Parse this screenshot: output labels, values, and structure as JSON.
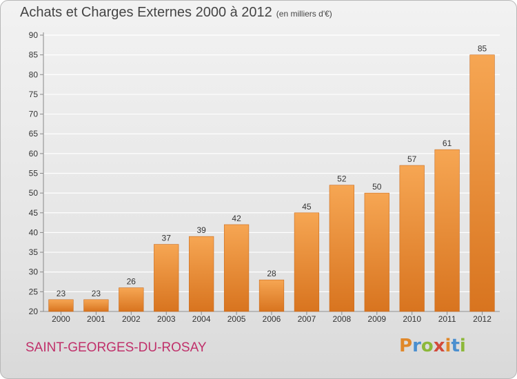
{
  "header": {
    "title": "Achats et Charges Externes 2000 à 2012",
    "subtitle": "(en milliers d'€)"
  },
  "footer": {
    "commune": "SAINT-GEORGES-DU-ROSAY",
    "brand": "Proxiti",
    "brand_colors": [
      "#e0882a",
      "#4a8fcf",
      "#8cb83a",
      "#d24a3a",
      "#e0882a",
      "#4a8fcf",
      "#8cb83a"
    ]
  },
  "colors": {
    "bar_top": "#f6a653",
    "bar_bottom": "#d8741f",
    "grid": "#ffffff",
    "axis_text": "#333333",
    "title_text": "#444444",
    "commune_text": "#c0306a"
  },
  "chart_data": {
    "type": "bar",
    "categories": [
      "2000",
      "2001",
      "2002",
      "2003",
      "2004",
      "2005",
      "2006",
      "2007",
      "2008",
      "2009",
      "2010",
      "2011",
      "2012"
    ],
    "values": [
      23,
      23,
      26,
      37,
      39,
      42,
      28,
      45,
      52,
      50,
      57,
      61,
      85
    ],
    "ylim": [
      20,
      90
    ],
    "yticks": [
      20,
      25,
      30,
      35,
      40,
      45,
      50,
      55,
      60,
      65,
      70,
      75,
      80,
      85,
      90
    ],
    "grid": true,
    "data_labels": true
  }
}
